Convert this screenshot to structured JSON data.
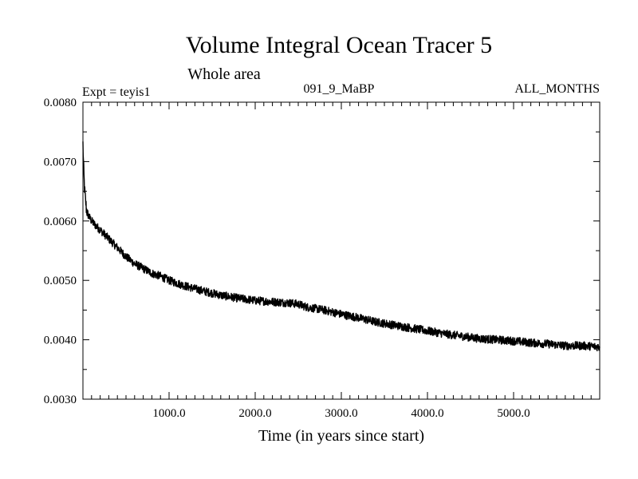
{
  "chart_data": {
    "type": "line",
    "title": "Volume Integral Ocean Tracer 5",
    "subtitle": "Whole area",
    "annotations": {
      "left": "Expt = teyis1",
      "center": "091_9_MaBP",
      "right": "ALL_MONTHS"
    },
    "xlabel": "Time (in years since start)",
    "ylabel": "",
    "xlim": [
      0,
      6000
    ],
    "ylim": [
      0.003,
      0.008
    ],
    "x_ticks": [
      1000,
      2000,
      3000,
      4000,
      5000
    ],
    "x_tick_labels": [
      "1000.0",
      "2000.0",
      "3000.0",
      "4000.0",
      "5000.0"
    ],
    "y_ticks": [
      0.003,
      0.004,
      0.005,
      0.006,
      0.007,
      0.008
    ],
    "y_tick_labels": [
      "0.0030",
      "0.0040",
      "0.0050",
      "0.0060",
      "0.0070",
      "0.0080"
    ],
    "grid": false,
    "line_color": "#000000",
    "series": [
      {
        "x": [
          0,
          10,
          20,
          40,
          60,
          80,
          100,
          150,
          200,
          300,
          400,
          500,
          600,
          700,
          800,
          900,
          1000,
          1200,
          1400,
          1600,
          1800,
          2000,
          2200,
          2400,
          2500,
          2600,
          2800,
          3000,
          3200,
          3400,
          3600,
          3800,
          4000,
          4200,
          4400,
          4600,
          4800,
          5000,
          5200,
          5400,
          5600,
          5800,
          6000
        ],
        "y": [
          0.0073,
          0.0068,
          0.0065,
          0.0062,
          0.0061,
          0.00605,
          0.006,
          0.00592,
          0.00585,
          0.0057,
          0.00555,
          0.0054,
          0.00528,
          0.0052,
          0.00512,
          0.00507,
          0.005,
          0.0049,
          0.00482,
          0.00475,
          0.0047,
          0.00466,
          0.00464,
          0.00462,
          0.0046,
          0.00455,
          0.0045,
          0.00443,
          0.00437,
          0.0043,
          0.00425,
          0.0042,
          0.00415,
          0.0041,
          0.00406,
          0.00402,
          0.004,
          0.00398,
          0.00395,
          0.00393,
          0.0039,
          0.0039,
          0.00388
        ]
      }
    ]
  }
}
